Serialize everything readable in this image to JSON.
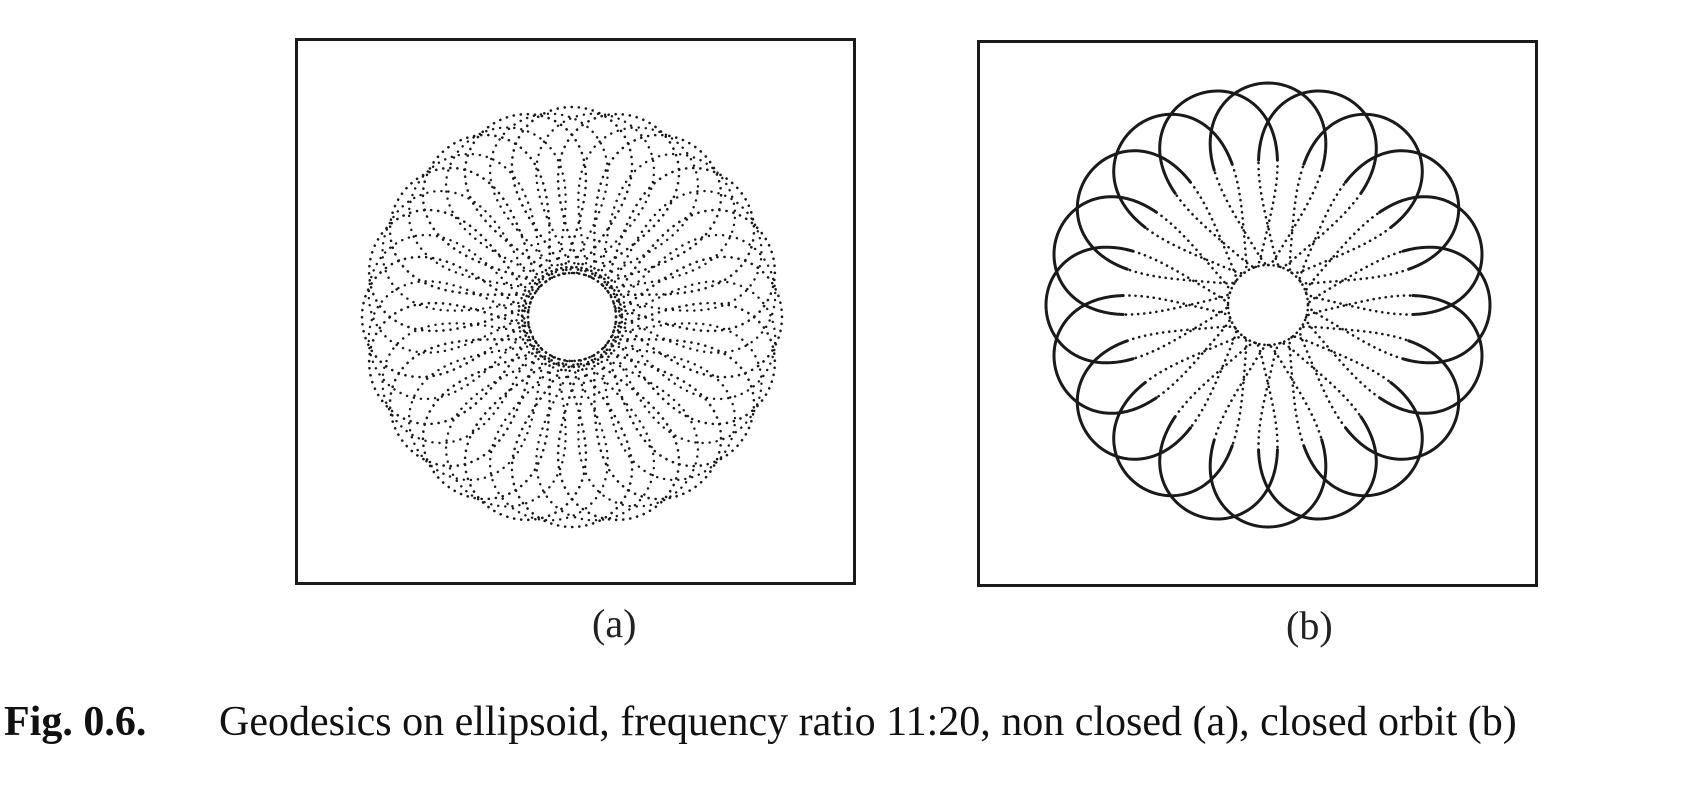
{
  "figure": {
    "number": "Fig. 0.6.",
    "caption": "Geodesics on ellipsoid, frequency ratio 11:20, non closed (a), closed orbit (b)"
  },
  "panels": [
    {
      "id": "a",
      "label": "(a)",
      "orbit": "non closed",
      "lobes": 20,
      "dotted": true
    },
    {
      "id": "b",
      "label": "(b)",
      "orbit": "closed",
      "lobes": 20,
      "dotted": true
    }
  ],
  "colors": {
    "ink": "#1a1a1a",
    "background": "#ffffff"
  }
}
